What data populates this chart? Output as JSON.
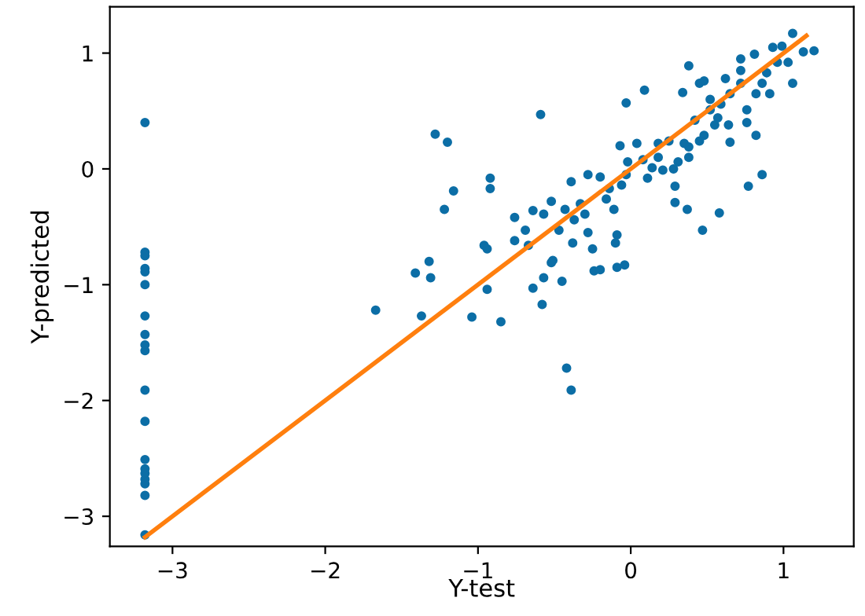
{
  "chart_data": {
    "type": "scatter",
    "xlabel": "Y-test",
    "ylabel": "Y-predicted",
    "xlim": [
      -3.41,
      1.46
    ],
    "ylim": [
      -3.26,
      1.4
    ],
    "xticks": [
      {
        "value": -3,
        "label": "−3"
      },
      {
        "value": -2,
        "label": "−2"
      },
      {
        "value": -1,
        "label": "−1"
      },
      0,
      1
    ],
    "yticks": [
      {
        "value": -3,
        "label": "−3"
      },
      {
        "value": -2,
        "label": "−2"
      },
      {
        "value": -1,
        "label": "−1"
      },
      0,
      1
    ],
    "grid": false,
    "legend": false,
    "series": [
      {
        "color": "#0c6ea6",
        "marker": "circle",
        "x": [
          -3.18,
          -3.18,
          -3.18,
          -3.18,
          -3.18,
          -3.18,
          -3.18,
          -3.18,
          -3.18,
          -3.18,
          -3.18,
          -3.18,
          -3.18,
          -3.18,
          -3.18,
          -3.18,
          -3.18,
          -3.18,
          -3.18,
          -1.67,
          -1.37,
          -1.04,
          -0.85,
          -1.41,
          -1.32,
          -1.31,
          -0.94,
          -0.96,
          -0.94,
          -0.64,
          -0.58,
          -0.45,
          -0.57,
          -0.52,
          -0.51,
          -0.76,
          -0.64,
          -0.76,
          -0.69,
          -0.67,
          -0.57,
          -0.52,
          -0.47,
          -0.43,
          -0.38,
          -0.37,
          -0.33,
          -0.3,
          -0.28,
          -0.25,
          -0.24,
          -0.2,
          -0.2,
          -0.28,
          -0.39,
          -0.16,
          -0.14,
          -0.11,
          -0.09,
          -0.09,
          -0.04,
          -0.1,
          -0.06,
          -0.03,
          -0.02,
          -0.07,
          0.04,
          0.08,
          0.11,
          0.14,
          0.18,
          0.21,
          0.09,
          -0.03,
          -0.59,
          -1.28,
          -1.2,
          -1.16,
          -1.22,
          -0.92,
          -0.92,
          0.29,
          0.29,
          0.37,
          0.47,
          0.58,
          0.38,
          0.34,
          0.48,
          0.45,
          0.52,
          0.59,
          0.62,
          0.65,
          0.72,
          0.76,
          0.82,
          0.86,
          0.91,
          0.72,
          0.81,
          0.93,
          0.99,
          1.06,
          1.13,
          1.2,
          1.06,
          1.03,
          0.64,
          0.76,
          0.82,
          0.65,
          0.48,
          0.42,
          0.38,
          0.31,
          0.28,
          0.35,
          0.25,
          0.18,
          0.45,
          0.55,
          0.86,
          0.77,
          0.96,
          0.89,
          0.72,
          0.52,
          0.57,
          0.38,
          -0.42,
          -0.39
        ],
        "values": [
          0.4,
          -0.72,
          -0.75,
          -0.86,
          -0.89,
          -1.0,
          -1.27,
          -1.43,
          -1.52,
          -1.57,
          -1.91,
          -2.18,
          -2.51,
          -2.59,
          -2.63,
          -2.68,
          -2.72,
          -2.82,
          -3.16,
          -1.22,
          -1.27,
          -1.28,
          -1.32,
          -0.9,
          -0.8,
          -0.94,
          -1.04,
          -0.66,
          -0.69,
          -1.03,
          -1.17,
          -0.97,
          -0.94,
          -0.81,
          -0.79,
          -0.42,
          -0.36,
          -0.62,
          -0.53,
          -0.66,
          -0.39,
          -0.28,
          -0.53,
          -0.35,
          -0.64,
          -0.44,
          -0.3,
          -0.39,
          -0.55,
          -0.69,
          -0.88,
          -0.87,
          -0.07,
          -0.05,
          -0.11,
          -0.26,
          -0.17,
          -0.35,
          -0.57,
          -0.85,
          -0.83,
          -0.64,
          -0.14,
          -0.05,
          0.06,
          0.2,
          0.22,
          0.08,
          -0.08,
          0.01,
          0.1,
          -0.01,
          0.68,
          0.57,
          0.47,
          0.3,
          0.23,
          -0.19,
          -0.35,
          -0.08,
          -0.17,
          -0.15,
          -0.29,
          -0.35,
          -0.53,
          -0.38,
          0.89,
          0.66,
          0.76,
          0.74,
          0.6,
          0.56,
          0.78,
          0.65,
          0.74,
          0.51,
          0.65,
          0.74,
          0.65,
          0.95,
          0.99,
          1.05,
          1.06,
          1.17,
          1.01,
          1.02,
          0.74,
          0.92,
          0.38,
          0.4,
          0.29,
          0.23,
          0.29,
          0.42,
          0.19,
          0.06,
          0.0,
          0.22,
          0.24,
          0.22,
          0.24,
          0.38,
          -0.05,
          -0.15,
          0.92,
          0.83,
          0.85,
          0.51,
          0.44,
          0.1,
          -1.72,
          -1.91
        ]
      },
      {
        "type": "line",
        "color": "#ff7f0e",
        "marker": "none",
        "x": [
          -3.18,
          1.15
        ],
        "values": [
          -3.18,
          1.15
        ]
      }
    ]
  }
}
